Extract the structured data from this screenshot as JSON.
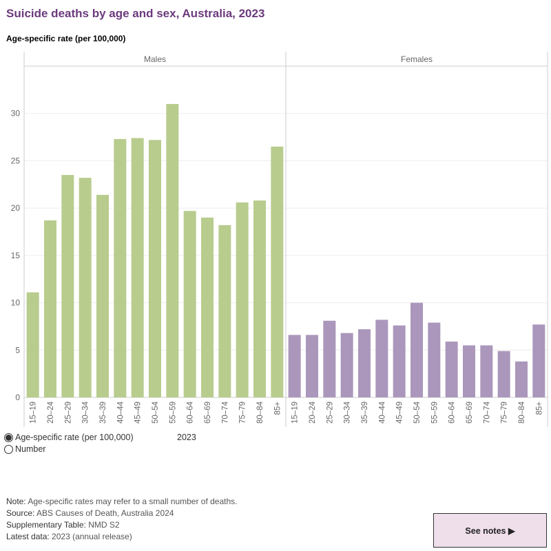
{
  "title": "Suicide deaths by age and sex, Australia, 2023",
  "measure_label": "Age-specific rate (per 100,000)",
  "chart_data": {
    "type": "bar",
    "ylabel": "Age-specific rate (per 100,000)",
    "ylim": [
      0,
      35
    ],
    "yticks": [
      0,
      5,
      10,
      15,
      20,
      25,
      30
    ],
    "grid": true,
    "categories": [
      "15–19",
      "20–24",
      "25–29",
      "30–34",
      "35–39",
      "40–44",
      "45–49",
      "50–54",
      "55–59",
      "60–64",
      "65–69",
      "70–74",
      "75–79",
      "80–84",
      "85+"
    ],
    "panels": [
      {
        "name": "Males",
        "color": "#b8cc8e",
        "values": [
          11.1,
          18.7,
          23.5,
          23.2,
          21.4,
          27.3,
          27.4,
          27.2,
          31.0,
          19.7,
          19.0,
          18.2,
          20.6,
          20.8,
          26.5
        ]
      },
      {
        "name": "Females",
        "color": "#ab97bb",
        "values": [
          6.6,
          6.6,
          8.1,
          6.8,
          7.2,
          8.2,
          7.6,
          10.0,
          7.9,
          5.9,
          5.5,
          5.5,
          4.9,
          3.8,
          7.7
        ]
      }
    ]
  },
  "controls": {
    "options": [
      {
        "label": "Age-specific rate (per 100,000)",
        "selected": true
      },
      {
        "label": "Number",
        "selected": false
      }
    ],
    "year": "2023"
  },
  "notes": [
    {
      "key": "Note:",
      "text": " Age-specific rates may refer to a small number of deaths."
    },
    {
      "key": "Source:",
      "text": " ABS Causes of Death, Australia 2024"
    },
    {
      "key": "Supplementary Table:",
      "text": " NMD S2"
    },
    {
      "key": "Latest data:",
      "text": " 2023 (annual release)"
    }
  ],
  "see_notes_label": "See notes ▶"
}
